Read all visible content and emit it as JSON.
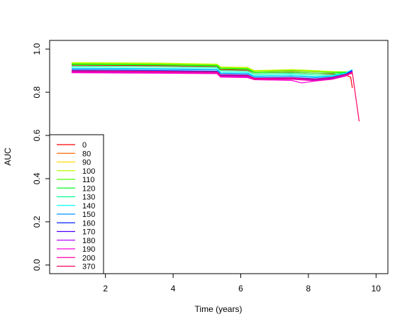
{
  "chart_data": {
    "type": "line",
    "title": "",
    "xlabel": "Time (years)",
    "ylabel": "AUC",
    "xlim": [
      0.35,
      10.35
    ],
    "ylim": [
      -0.04,
      1.04
    ],
    "x_ticks": [
      2,
      4,
      6,
      8,
      10
    ],
    "x_tick_labels": [
      "2",
      "4",
      "6",
      "8",
      "10"
    ],
    "y_ticks": [
      0.0,
      0.2,
      0.4,
      0.6,
      0.8,
      1.0
    ],
    "y_tick_labels": [
      "0.0",
      "0.2",
      "0.4",
      "0.6",
      "0.8",
      "1.0"
    ],
    "grid": false,
    "legend_position": "bottom-left",
    "series": [
      {
        "name": "0",
        "color": "#FF0000",
        "points": [
          [
            1.0,
            0.925
          ],
          [
            3.5,
            0.923
          ],
          [
            5.3,
            0.92
          ],
          [
            5.4,
            0.905
          ],
          [
            6.2,
            0.902
          ],
          [
            6.4,
            0.89
          ],
          [
            7.5,
            0.892
          ],
          [
            8.2,
            0.888
          ],
          [
            8.7,
            0.885
          ],
          [
            9.1,
            0.88
          ],
          [
            9.25,
            0.87
          ],
          [
            9.3,
            0.82
          ]
        ]
      },
      {
        "name": "80",
        "color": "#FF6C00",
        "points": [
          [
            1.0,
            0.93
          ],
          [
            3.5,
            0.928
          ],
          [
            5.3,
            0.925
          ],
          [
            5.4,
            0.912
          ],
          [
            6.2,
            0.91
          ],
          [
            6.4,
            0.896
          ],
          [
            7.5,
            0.898
          ],
          [
            8.2,
            0.895
          ],
          [
            8.7,
            0.892
          ],
          [
            9.1,
            0.888
          ],
          [
            9.3,
            0.885
          ]
        ]
      },
      {
        "name": "90",
        "color": "#FFD900",
        "points": [
          [
            1.0,
            0.935
          ],
          [
            3.5,
            0.933
          ],
          [
            5.3,
            0.928
          ],
          [
            5.4,
            0.915
          ],
          [
            6.2,
            0.913
          ],
          [
            6.4,
            0.898
          ],
          [
            7.5,
            0.902
          ],
          [
            8.2,
            0.898
          ],
          [
            8.7,
            0.894
          ],
          [
            9.1,
            0.892
          ],
          [
            9.3,
            0.89
          ]
        ]
      },
      {
        "name": "100",
        "color": "#B8FF00",
        "points": [
          [
            1.0,
            0.937
          ],
          [
            3.5,
            0.935
          ],
          [
            5.3,
            0.93
          ],
          [
            5.4,
            0.917
          ],
          [
            6.2,
            0.915
          ],
          [
            6.4,
            0.9
          ],
          [
            7.5,
            0.905
          ],
          [
            8.2,
            0.9
          ],
          [
            8.7,
            0.896
          ],
          [
            9.1,
            0.895
          ],
          [
            9.3,
            0.893
          ]
        ]
      },
      {
        "name": "110",
        "color": "#4BFF00",
        "points": [
          [
            1.0,
            0.932
          ],
          [
            3.5,
            0.93
          ],
          [
            5.3,
            0.925
          ],
          [
            5.4,
            0.912
          ],
          [
            6.2,
            0.91
          ],
          [
            6.4,
            0.895
          ],
          [
            7.5,
            0.9
          ],
          [
            8.2,
            0.895
          ],
          [
            8.7,
            0.893
          ],
          [
            9.1,
            0.893
          ],
          [
            9.3,
            0.892
          ]
        ]
      },
      {
        "name": "120",
        "color": "#00FF22",
        "points": [
          [
            1.0,
            0.928
          ],
          [
            3.5,
            0.926
          ],
          [
            5.3,
            0.922
          ],
          [
            5.4,
            0.908
          ],
          [
            6.2,
            0.906
          ],
          [
            6.4,
            0.89
          ],
          [
            7.5,
            0.893
          ],
          [
            8.2,
            0.888
          ],
          [
            8.7,
            0.888
          ],
          [
            9.1,
            0.893
          ],
          [
            9.3,
            0.898
          ]
        ]
      },
      {
        "name": "130",
        "color": "#00FF90",
        "points": [
          [
            1.0,
            0.92
          ],
          [
            3.5,
            0.918
          ],
          [
            5.3,
            0.915
          ],
          [
            5.4,
            0.9
          ],
          [
            6.2,
            0.898
          ],
          [
            6.4,
            0.883
          ],
          [
            7.5,
            0.887
          ],
          [
            8.2,
            0.88
          ],
          [
            8.7,
            0.88
          ],
          [
            9.1,
            0.89
          ],
          [
            9.3,
            0.903
          ]
        ]
      },
      {
        "name": "140",
        "color": "#00FFFF",
        "points": [
          [
            1.0,
            0.912
          ],
          [
            3.5,
            0.91
          ],
          [
            5.3,
            0.908
          ],
          [
            5.4,
            0.893
          ],
          [
            6.2,
            0.891
          ],
          [
            6.4,
            0.876
          ],
          [
            7.5,
            0.88
          ],
          [
            8.2,
            0.873
          ],
          [
            8.7,
            0.876
          ],
          [
            9.1,
            0.888
          ],
          [
            9.3,
            0.905
          ]
        ]
      },
      {
        "name": "150",
        "color": "#0090FF",
        "points": [
          [
            1.0,
            0.908
          ],
          [
            3.5,
            0.906
          ],
          [
            5.3,
            0.903
          ],
          [
            5.4,
            0.888
          ],
          [
            6.2,
            0.886
          ],
          [
            6.4,
            0.872
          ],
          [
            7.5,
            0.875
          ],
          [
            8.2,
            0.868
          ],
          [
            8.7,
            0.872
          ],
          [
            9.1,
            0.885
          ],
          [
            9.3,
            0.902
          ]
        ]
      },
      {
        "name": "160",
        "color": "#0022FF",
        "points": [
          [
            1.0,
            0.902
          ],
          [
            3.5,
            0.9
          ],
          [
            5.3,
            0.897
          ],
          [
            5.4,
            0.882
          ],
          [
            6.2,
            0.88
          ],
          [
            6.4,
            0.866
          ],
          [
            7.5,
            0.868
          ],
          [
            8.2,
            0.862
          ],
          [
            8.7,
            0.868
          ],
          [
            9.1,
            0.882
          ],
          [
            9.3,
            0.9
          ]
        ]
      },
      {
        "name": "170",
        "color": "#4B00FF",
        "points": [
          [
            1.0,
            0.898
          ],
          [
            3.5,
            0.896
          ],
          [
            5.3,
            0.893
          ],
          [
            5.4,
            0.878
          ],
          [
            6.2,
            0.876
          ],
          [
            6.4,
            0.862
          ],
          [
            7.5,
            0.864
          ],
          [
            8.2,
            0.858
          ],
          [
            8.7,
            0.865
          ],
          [
            9.1,
            0.88
          ],
          [
            9.3,
            0.898
          ]
        ]
      },
      {
        "name": "180",
        "color": "#B800FF",
        "points": [
          [
            1.0,
            0.895
          ],
          [
            3.5,
            0.893
          ],
          [
            5.3,
            0.89
          ],
          [
            5.4,
            0.875
          ],
          [
            6.2,
            0.873
          ],
          [
            6.4,
            0.86
          ],
          [
            7.5,
            0.862
          ],
          [
            8.2,
            0.855
          ],
          [
            8.7,
            0.862
          ],
          [
            9.1,
            0.878
          ],
          [
            9.3,
            0.895
          ]
        ]
      },
      {
        "name": "190",
        "color": "#FF00D9",
        "points": [
          [
            1.0,
            0.89
          ],
          [
            3.5,
            0.888
          ],
          [
            5.3,
            0.886
          ],
          [
            5.4,
            0.87
          ],
          [
            6.2,
            0.868
          ],
          [
            6.4,
            0.858
          ],
          [
            7.5,
            0.855
          ],
          [
            7.8,
            0.843
          ],
          [
            8.2,
            0.852
          ],
          [
            8.7,
            0.86
          ],
          [
            9.1,
            0.875
          ],
          [
            9.3,
            0.89
          ]
        ]
      },
      {
        "name": "200",
        "color": "#FF00A8",
        "points": [
          [
            1.0,
            0.893
          ],
          [
            3.5,
            0.891
          ],
          [
            5.3,
            0.888
          ],
          [
            5.4,
            0.873
          ],
          [
            6.2,
            0.871
          ],
          [
            6.4,
            0.859
          ],
          [
            7.5,
            0.86
          ],
          [
            8.2,
            0.853
          ],
          [
            8.7,
            0.86
          ],
          [
            9.1,
            0.876
          ],
          [
            9.3,
            0.893
          ]
        ]
      },
      {
        "name": "370",
        "color": "#FF0060",
        "points": [
          [
            1.0,
            0.899
          ],
          [
            3.5,
            0.897
          ],
          [
            5.3,
            0.894
          ],
          [
            5.4,
            0.88
          ],
          [
            6.2,
            0.878
          ],
          [
            6.4,
            0.864
          ],
          [
            7.5,
            0.866
          ],
          [
            8.2,
            0.86
          ],
          [
            8.7,
            0.868
          ],
          [
            9.1,
            0.882
          ],
          [
            9.3,
            0.89
          ],
          [
            9.5,
            0.665
          ]
        ]
      }
    ]
  }
}
